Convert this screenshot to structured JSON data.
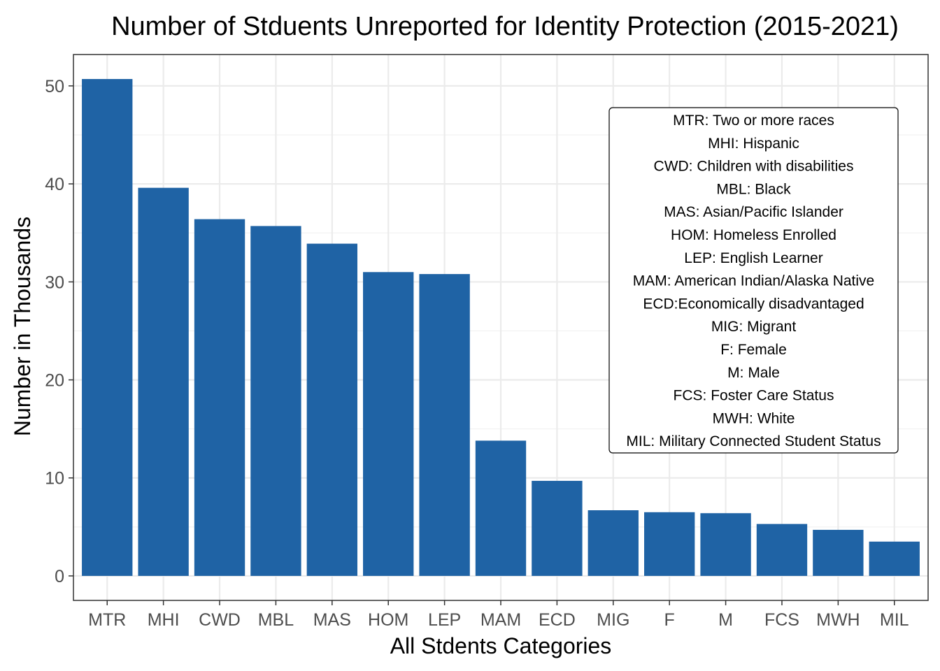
{
  "chart_data": {
    "type": "bar",
    "title": "Number of Stduents Unreported for Identity Protection (2015-2021)",
    "xlabel": "All Stdents Categories",
    "ylabel": "Number in Thousands",
    "categories": [
      "MTR",
      "MHI",
      "CWD",
      "MBL",
      "MAS",
      "HOM",
      "LEP",
      "MAM",
      "ECD",
      "MIG",
      "F",
      "M",
      "FCS",
      "MWH",
      "MIL"
    ],
    "values": [
      50.7,
      39.6,
      36.4,
      35.7,
      33.9,
      31.0,
      30.8,
      13.8,
      9.7,
      6.7,
      6.5,
      6.4,
      5.3,
      4.7,
      3.5
    ],
    "ylim": [
      -2.5,
      53.2
    ],
    "yticks": [
      0,
      10,
      20,
      30,
      40,
      50
    ],
    "grid": true,
    "bar_color": "#1f63a5",
    "legend_placement": "top-right",
    "legend_lines": [
      "MTR: Two or more races",
      "MHI: Hispanic",
      "CWD: Children with disabilities",
      "MBL: Black",
      "MAS: Asian/Pacific Islander",
      "HOM: Homeless Enrolled",
      "LEP: English Learner",
      "MAM: American Indian/Alaska Native",
      "ECD:Economically disadvantaged",
      "MIG: Migrant",
      "F: Female",
      "M: Male",
      "FCS: Foster Care Status",
      "MWH: White",
      "MIL: Military Connected Student Status"
    ]
  }
}
